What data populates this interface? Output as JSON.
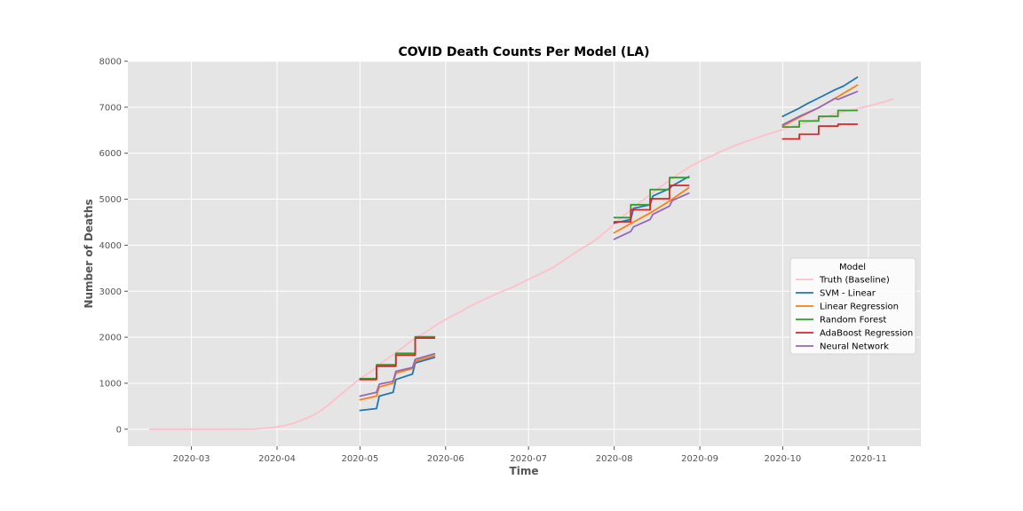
{
  "chart_data": {
    "type": "line",
    "title": "COVID Death Counts Per Model (LA)",
    "xlabel": "Time",
    "ylabel": "Number of Deaths",
    "x_type": "date",
    "xlim": [
      "2020-02-07",
      "2020-11-20"
    ],
    "ylim": [
      -370,
      8000
    ],
    "x_ticks": [
      "2020-03-01",
      "2020-04-01",
      "2020-05-01",
      "2020-06-01",
      "2020-07-01",
      "2020-08-01",
      "2020-09-01",
      "2020-10-01",
      "2020-11-01"
    ],
    "x_tick_labels": [
      "2020-03",
      "2020-04",
      "2020-05",
      "2020-06",
      "2020-07",
      "2020-08",
      "2020-09",
      "2020-10",
      "2020-11"
    ],
    "y_ticks": [
      0,
      1000,
      2000,
      3000,
      4000,
      5000,
      6000,
      7000,
      8000
    ],
    "y_tick_labels": [
      "0",
      "1000",
      "2000",
      "3000",
      "4000",
      "5000",
      "6000",
      "7000",
      "8000"
    ],
    "grid": true,
    "legend": {
      "title": "Model",
      "placement": "center-right"
    },
    "series": [
      {
        "name": "Truth (Baseline)",
        "color": "#ffc0cb",
        "points": [
          [
            "2020-02-15",
            0
          ],
          [
            "2020-03-01",
            0
          ],
          [
            "2020-03-15",
            0
          ],
          [
            "2020-03-24",
            5
          ],
          [
            "2020-03-31",
            40
          ],
          [
            "2020-04-03",
            70
          ],
          [
            "2020-04-07",
            130
          ],
          [
            "2020-04-10",
            200
          ],
          [
            "2020-04-13",
            270
          ],
          [
            "2020-04-16",
            370
          ],
          [
            "2020-04-19",
            500
          ],
          [
            "2020-04-22",
            650
          ],
          [
            "2020-04-25",
            800
          ],
          [
            "2020-04-28",
            950
          ],
          [
            "2020-05-01",
            1100
          ],
          [
            "2020-05-05",
            1250
          ],
          [
            "2020-05-09",
            1450
          ],
          [
            "2020-05-13",
            1620
          ],
          [
            "2020-05-17",
            1800
          ],
          [
            "2020-05-21",
            1980
          ],
          [
            "2020-05-25",
            2120
          ],
          [
            "2020-05-29",
            2280
          ],
          [
            "2020-06-02",
            2420
          ],
          [
            "2020-06-06",
            2540
          ],
          [
            "2020-06-10",
            2680
          ],
          [
            "2020-06-15",
            2820
          ],
          [
            "2020-06-20",
            2960
          ],
          [
            "2020-06-25",
            3080
          ],
          [
            "2020-06-30",
            3230
          ],
          [
            "2020-07-05",
            3370
          ],
          [
            "2020-07-10",
            3520
          ],
          [
            "2020-07-15",
            3720
          ],
          [
            "2020-07-20",
            3920
          ],
          [
            "2020-07-25",
            4100
          ],
          [
            "2020-07-30",
            4350
          ],
          [
            "2020-08-04",
            4620
          ],
          [
            "2020-08-09",
            4870
          ],
          [
            "2020-08-14",
            5100
          ],
          [
            "2020-08-19",
            5320
          ],
          [
            "2020-08-24",
            5540
          ],
          [
            "2020-08-29",
            5730
          ],
          [
            "2020-09-03",
            5880
          ],
          [
            "2020-09-08",
            6020
          ],
          [
            "2020-09-13",
            6150
          ],
          [
            "2020-09-18",
            6260
          ],
          [
            "2020-09-23",
            6360
          ],
          [
            "2020-09-28",
            6460
          ],
          [
            "2020-10-03",
            6550
          ],
          [
            "2020-10-08",
            6640
          ],
          [
            "2020-10-13",
            6730
          ],
          [
            "2020-10-18",
            6820
          ],
          [
            "2020-10-23",
            6900
          ],
          [
            "2020-10-28",
            6970
          ],
          [
            "2020-11-02",
            7040
          ],
          [
            "2020-11-07",
            7120
          ],
          [
            "2020-11-10",
            7180
          ]
        ]
      },
      {
        "name": "SVM - Linear",
        "color": "#1f77b4",
        "segments": [
          [
            [
              "2020-05-01",
              410
            ],
            [
              "2020-05-07",
              450
            ],
            [
              "2020-05-08",
              720
            ],
            [
              "2020-05-13",
              800
            ],
            [
              "2020-05-14",
              1080
            ],
            [
              "2020-05-20",
              1200
            ],
            [
              "2020-05-21",
              1440
            ],
            [
              "2020-05-28",
              1560
            ]
          ],
          [
            [
              "2020-08-01",
              4480
            ],
            [
              "2020-08-07",
              4560
            ],
            [
              "2020-08-08",
              4800
            ],
            [
              "2020-08-14",
              4880
            ],
            [
              "2020-08-15",
              5070
            ],
            [
              "2020-08-21",
              5230
            ],
            [
              "2020-08-22",
              5290
            ],
            [
              "2020-08-28",
              5490
            ]
          ],
          [
            [
              "2020-10-01",
              6800
            ],
            [
              "2020-10-07",
              6980
            ],
            [
              "2020-10-10",
              7080
            ],
            [
              "2020-10-14",
              7200
            ],
            [
              "2020-10-20",
              7380
            ],
            [
              "2020-10-23",
              7460
            ],
            [
              "2020-10-28",
              7650
            ]
          ]
        ]
      },
      {
        "name": "Linear Regression",
        "color": "#ff7f0e",
        "segments": [
          [
            [
              "2020-05-01",
              640
            ],
            [
              "2020-05-07",
              720
            ],
            [
              "2020-05-08",
              920
            ],
            [
              "2020-05-13",
              1000
            ],
            [
              "2020-05-14",
              1220
            ],
            [
              "2020-05-20",
              1320
            ],
            [
              "2020-05-21",
              1480
            ],
            [
              "2020-05-28",
              1600
            ]
          ],
          [
            [
              "2020-08-01",
              4270
            ],
            [
              "2020-08-07",
              4470
            ],
            [
              "2020-08-14",
              4700
            ],
            [
              "2020-08-21",
              4960
            ],
            [
              "2020-08-28",
              5250
            ]
          ],
          [
            [
              "2020-10-01",
              6590
            ],
            [
              "2020-10-07",
              6780
            ],
            [
              "2020-10-14",
              6990
            ],
            [
              "2020-10-21",
              7230
            ],
            [
              "2020-10-28",
              7480
            ]
          ]
        ]
      },
      {
        "name": "Random Forest",
        "color": "#2ca02c",
        "segments": [
          [
            [
              "2020-05-01",
              1100
            ],
            [
              "2020-05-07",
              1100
            ],
            [
              "2020-05-07",
              1400
            ],
            [
              "2020-05-14",
              1400
            ],
            [
              "2020-05-14",
              1650
            ],
            [
              "2020-05-21",
              1650
            ],
            [
              "2020-05-21",
              2010
            ],
            [
              "2020-05-28",
              2010
            ]
          ],
          [
            [
              "2020-08-01",
              4600
            ],
            [
              "2020-08-07",
              4600
            ],
            [
              "2020-08-07",
              4880
            ],
            [
              "2020-08-14",
              4880
            ],
            [
              "2020-08-14",
              5210
            ],
            [
              "2020-08-21",
              5210
            ],
            [
              "2020-08-21",
              5470
            ],
            [
              "2020-08-28",
              5470
            ]
          ],
          [
            [
              "2020-10-01",
              6570
            ],
            [
              "2020-10-07",
              6570
            ],
            [
              "2020-10-07",
              6700
            ],
            [
              "2020-10-14",
              6700
            ],
            [
              "2020-10-14",
              6800
            ],
            [
              "2020-10-21",
              6800
            ],
            [
              "2020-10-21",
              6930
            ],
            [
              "2020-10-28",
              6930
            ]
          ]
        ]
      },
      {
        "name": "AdaBoost Regression",
        "color": "#d62728",
        "segments": [
          [
            [
              "2020-05-01",
              1080
            ],
            [
              "2020-05-07",
              1080
            ],
            [
              "2020-05-07",
              1370
            ],
            [
              "2020-05-14",
              1370
            ],
            [
              "2020-05-14",
              1610
            ],
            [
              "2020-05-21",
              1610
            ],
            [
              "2020-05-21",
              1980
            ],
            [
              "2020-05-28",
              1980
            ]
          ],
          [
            [
              "2020-08-01",
              4510
            ],
            [
              "2020-08-07",
              4510
            ],
            [
              "2020-08-07",
              4770
            ],
            [
              "2020-08-14",
              4770
            ],
            [
              "2020-08-14",
              5010
            ],
            [
              "2020-08-21",
              5010
            ],
            [
              "2020-08-21",
              5300
            ],
            [
              "2020-08-28",
              5300
            ]
          ],
          [
            [
              "2020-10-01",
              6310
            ],
            [
              "2020-10-07",
              6310
            ],
            [
              "2020-10-07",
              6410
            ],
            [
              "2020-10-14",
              6410
            ],
            [
              "2020-10-14",
              6590
            ],
            [
              "2020-10-21",
              6590
            ],
            [
              "2020-10-21",
              6630
            ],
            [
              "2020-10-28",
              6630
            ]
          ]
        ]
      },
      {
        "name": "Neural Network",
        "color": "#9467bd",
        "segments": [
          [
            [
              "2020-05-01",
              720
            ],
            [
              "2020-05-07",
              800
            ],
            [
              "2020-05-08",
              980
            ],
            [
              "2020-05-13",
              1040
            ],
            [
              "2020-05-14",
              1260
            ],
            [
              "2020-05-20",
              1340
            ],
            [
              "2020-05-21",
              1520
            ],
            [
              "2020-05-28",
              1640
            ]
          ],
          [
            [
              "2020-08-01",
              4130
            ],
            [
              "2020-08-07",
              4300
            ],
            [
              "2020-08-08",
              4400
            ],
            [
              "2020-08-14",
              4560
            ],
            [
              "2020-08-15",
              4670
            ],
            [
              "2020-08-21",
              4850
            ],
            [
              "2020-08-22",
              4970
            ],
            [
              "2020-08-28",
              5130
            ]
          ],
          [
            [
              "2020-10-01",
              6620
            ],
            [
              "2020-10-07",
              6800
            ],
            [
              "2020-10-14",
              6990
            ],
            [
              "2020-10-20",
              7190
            ],
            [
              "2020-10-21",
              7170
            ],
            [
              "2020-10-28",
              7340
            ]
          ]
        ]
      }
    ]
  }
}
